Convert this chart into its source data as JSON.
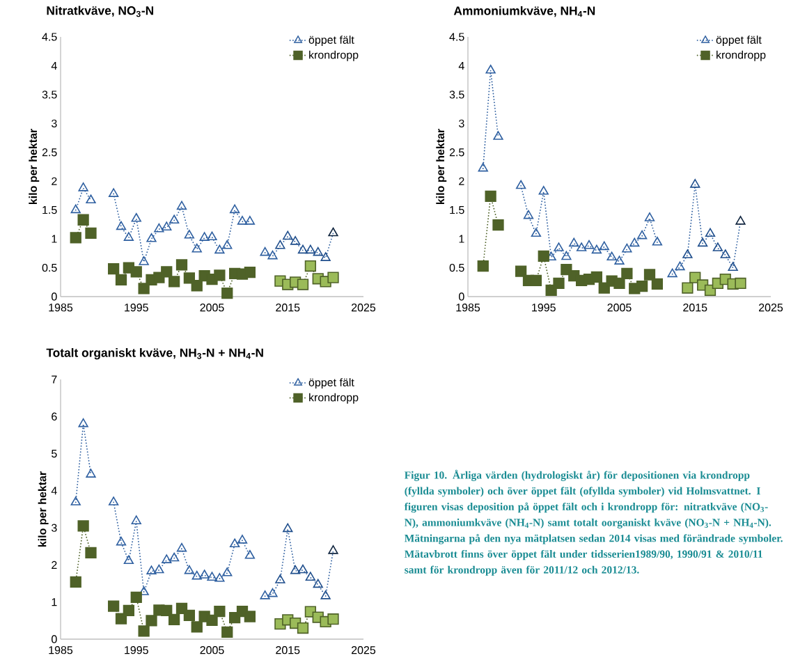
{
  "chart_data": [
    {
      "type": "line",
      "title": "Nitratkväve, NO$_{3}$-N",
      "ylabel": "kilo per hektar",
      "xlim": [
        1985,
        2025
      ],
      "xticks": [
        1985,
        1995,
        2005,
        2015,
        2025
      ],
      "ylim": [
        0,
        4.5
      ],
      "yticks": [
        0,
        0.5,
        1,
        1.5,
        2,
        2.5,
        3,
        3.5,
        4,
        4.5
      ],
      "legend": "top right",
      "x": [
        1987,
        1988,
        1989,
        1990,
        1991,
        1992,
        1993,
        1994,
        1995,
        1996,
        1997,
        1998,
        1999,
        2000,
        2001,
        2002,
        2003,
        2004,
        2005,
        2006,
        2007,
        2008,
        2009,
        2010,
        2011,
        2012,
        2013,
        2014,
        2015,
        2016,
        2017,
        2018,
        2019,
        2020,
        2021
      ],
      "series": [
        {
          "name": "öppet fält",
          "color": "#2e5fa0",
          "marker": "triangle",
          "line_style": "dotted",
          "values": [
            1.5,
            1.88,
            1.67,
            null,
            null,
            1.78,
            1.21,
            1.02,
            1.35,
            0.6,
            1.0,
            1.17,
            1.2,
            1.32,
            1.56,
            1.06,
            0.82,
            1.02,
            1.03,
            0.8,
            0.88,
            1.5,
            1.3,
            1.3,
            null,
            0.76,
            0.7,
            0.88,
            1.04,
            0.95,
            0.8,
            0.8,
            0.76,
            0.67,
            1.1
          ],
          "colors": [
            "#2e5fa0",
            "#2e5fa0",
            "#2e5fa0",
            null,
            null,
            "#2e5fa0",
            "#2e5fa0",
            "#2e5fa0",
            "#2e5fa0",
            "#2e5fa0",
            "#2e5fa0",
            "#2e5fa0",
            "#2e5fa0",
            "#2e5fa0",
            "#2e5fa0",
            "#2e5fa0",
            "#2e5fa0",
            "#2e5fa0",
            "#2e5fa0",
            "#2e5fa0",
            "#2e5fa0",
            "#2e5fa0",
            "#2e5fa0",
            "#2e5fa0",
            null,
            "#2e5fa0",
            "#2e5fa0",
            "#1f4e8c",
            "#1f4e8c",
            "#1f4e8c",
            "#1f4e8c",
            "#1f4e8c",
            "#1f4e8c",
            "#1f4e8c",
            "#10253f"
          ]
        },
        {
          "name": "krondropp",
          "color": "#4f6228",
          "marker": "square",
          "line_style": "dotted",
          "values": [
            1.02,
            1.33,
            1.1,
            null,
            null,
            0.48,
            0.29,
            0.5,
            0.43,
            0.14,
            0.29,
            0.33,
            0.43,
            0.26,
            0.55,
            0.32,
            0.19,
            0.36,
            0.3,
            0.37,
            0.06,
            0.4,
            0.39,
            0.42,
            null,
            null,
            null,
            0.27,
            0.21,
            0.25,
            0.21,
            0.53,
            0.31,
            0.26,
            0.33
          ],
          "colors": [
            "#4f6228",
            "#4f6228",
            "#4f6228",
            null,
            null,
            "#4f6228",
            "#4f6228",
            "#4f6228",
            "#4f6228",
            "#4f6228",
            "#4f6228",
            "#4f6228",
            "#4f6228",
            "#4f6228",
            "#4f6228",
            "#4f6228",
            "#4f6228",
            "#4f6228",
            "#4f6228",
            "#4f6228",
            "#4f6228",
            "#4f6228",
            "#4f6228",
            "#4f6228",
            null,
            null,
            null,
            "#9bbb59",
            "#9bbb59",
            "#9bbb59",
            "#9bbb59",
            "#9bbb59",
            "#9bbb59",
            "#9bbb59",
            "#9bbb59"
          ]
        }
      ]
    },
    {
      "type": "line",
      "title": "Ammoniumkväve, NH$_{4}$-N",
      "ylabel": "kilo per hektar",
      "xlim": [
        1985,
        2025
      ],
      "xticks": [
        1985,
        1995,
        2005,
        2015,
        2025
      ],
      "ylim": [
        0,
        4.5
      ],
      "yticks": [
        0,
        0.5,
        1,
        1.5,
        2,
        2.5,
        3,
        3.5,
        4,
        4.5
      ],
      "legend": "top right",
      "x": [
        1987,
        1988,
        1989,
        1990,
        1991,
        1992,
        1993,
        1994,
        1995,
        1996,
        1997,
        1998,
        1999,
        2000,
        2001,
        2002,
        2003,
        2004,
        2005,
        2006,
        2007,
        2008,
        2009,
        2010,
        2011,
        2012,
        2013,
        2014,
        2015,
        2016,
        2017,
        2018,
        2019,
        2020,
        2021
      ],
      "series": [
        {
          "name": "öppet fält",
          "color": "#2e5fa0",
          "marker": "triangle",
          "line_style": "dotted",
          "values": [
            2.22,
            3.92,
            2.77,
            null,
            null,
            1.92,
            1.4,
            1.09,
            1.82,
            0.68,
            0.84,
            0.69,
            0.92,
            0.84,
            0.88,
            0.8,
            0.86,
            0.68,
            0.61,
            0.82,
            0.92,
            1.05,
            1.36,
            0.94,
            null,
            0.39,
            0.51,
            0.72,
            1.94,
            0.92,
            1.09,
            0.84,
            0.72,
            0.5,
            1.3
          ],
          "colors": [
            "#2e5fa0",
            "#2e5fa0",
            "#2e5fa0",
            null,
            null,
            "#2e5fa0",
            "#2e5fa0",
            "#2e5fa0",
            "#2e5fa0",
            "#2e5fa0",
            "#2e5fa0",
            "#2e5fa0",
            "#2e5fa0",
            "#2e5fa0",
            "#2e5fa0",
            "#2e5fa0",
            "#2e5fa0",
            "#2e5fa0",
            "#2e5fa0",
            "#2e5fa0",
            "#2e5fa0",
            "#2e5fa0",
            "#2e5fa0",
            "#2e5fa0",
            null,
            "#2e5fa0",
            "#2e5fa0",
            "#1f4e8c",
            "#1f4e8c",
            "#1f4e8c",
            "#1f4e8c",
            "#1f4e8c",
            "#1f4e8c",
            "#1f4e8c",
            "#10253f"
          ]
        },
        {
          "name": "krondropp",
          "color": "#4f6228",
          "marker": "square",
          "line_style": "dotted",
          "values": [
            0.53,
            1.74,
            1.24,
            null,
            null,
            0.44,
            0.28,
            0.28,
            0.7,
            0.11,
            0.23,
            0.47,
            0.36,
            0.28,
            0.3,
            0.34,
            0.15,
            0.27,
            0.23,
            0.4,
            0.14,
            0.18,
            0.38,
            0.22,
            null,
            null,
            null,
            0.15,
            0.33,
            0.2,
            0.11,
            0.23,
            0.3,
            0.22,
            0.23
          ],
          "colors": [
            "#4f6228",
            "#4f6228",
            "#4f6228",
            null,
            null,
            "#4f6228",
            "#4f6228",
            "#4f6228",
            "#4f6228",
            "#4f6228",
            "#4f6228",
            "#4f6228",
            "#4f6228",
            "#4f6228",
            "#4f6228",
            "#4f6228",
            "#4f6228",
            "#4f6228",
            "#4f6228",
            "#4f6228",
            "#4f6228",
            "#4f6228",
            "#4f6228",
            "#4f6228",
            null,
            null,
            null,
            "#9bbb59",
            "#9bbb59",
            "#9bbb59",
            "#9bbb59",
            "#9bbb59",
            "#9bbb59",
            "#9bbb59",
            "#9bbb59"
          ]
        }
      ]
    },
    {
      "type": "line",
      "title": "Totalt organiskt kväve, NH$_{3}$-N + NH$_{4}$-N",
      "ylabel": "kilo per hektar",
      "xlim": [
        1985,
        2025
      ],
      "xticks": [
        1985,
        1995,
        2005,
        2015,
        2025
      ],
      "ylim": [
        0,
        7
      ],
      "yticks": [
        0,
        1,
        2,
        3,
        4,
        5,
        6,
        7
      ],
      "legend": "top right",
      "annotations": [
        "Figur 10. Årliga värden (hydrologiskt år) för depositionen via krondropp (fyllda symboler) och över öppet fält (ofyllda symboler) vid Holmsvattnet. I figuren visas deposition på öppet fält och i krondropp för: nitratkväve (NO$_{3}$-N), ammoniumkväve (NH$_{4}$-N) samt totalt oorganiskt kväve (NO$_{3}$-N + NH$_{4}$-N). Mätningarna på den nya mätplatsen sedan 2014 visas med förändrade symboler. Mätavbrott finns över öppet fält under tidsserien1989/90, 1990/91 & 2010/11 samt för krondropp även för 2011/12 och 2012/13."
      ],
      "x": [
        1987,
        1988,
        1989,
        1990,
        1991,
        1992,
        1993,
        1994,
        1995,
        1996,
        1997,
        1998,
        1999,
        2000,
        2001,
        2002,
        2003,
        2004,
        2005,
        2006,
        2007,
        2008,
        2009,
        2010,
        2011,
        2012,
        2013,
        2014,
        2015,
        2016,
        2017,
        2018,
        2019,
        2020,
        2021
      ],
      "series": [
        {
          "name": "öppet fält",
          "color": "#2e5fa0",
          "marker": "triangle",
          "line_style": "dotted",
          "values": [
            3.69,
            5.8,
            4.44,
            null,
            null,
            3.69,
            2.61,
            2.11,
            3.18,
            1.27,
            1.83,
            1.86,
            2.13,
            2.18,
            2.44,
            1.84,
            1.69,
            1.72,
            1.66,
            1.63,
            1.78,
            2.56,
            2.66,
            2.25,
            null,
            1.16,
            1.22,
            1.59,
            2.97,
            1.84,
            1.86,
            1.66,
            1.47,
            1.16,
            2.38
          ],
          "colors": [
            "#2e5fa0",
            "#2e5fa0",
            "#2e5fa0",
            null,
            null,
            "#2e5fa0",
            "#2e5fa0",
            "#2e5fa0",
            "#2e5fa0",
            "#2e5fa0",
            "#2e5fa0",
            "#2e5fa0",
            "#2e5fa0",
            "#2e5fa0",
            "#2e5fa0",
            "#2e5fa0",
            "#2e5fa0",
            "#2e5fa0",
            "#2e5fa0",
            "#2e5fa0",
            "#2e5fa0",
            "#2e5fa0",
            "#2e5fa0",
            "#2e5fa0",
            null,
            "#2e5fa0",
            "#2e5fa0",
            "#1f4e8c",
            "#1f4e8c",
            "#1f4e8c",
            "#1f4e8c",
            "#1f4e8c",
            "#1f4e8c",
            "#1f4e8c",
            "#10253f"
          ]
        },
        {
          "name": "krondropp",
          "color": "#4f6228",
          "marker": "square",
          "line_style": "dotted",
          "values": [
            1.54,
            3.05,
            2.33,
            null,
            null,
            0.89,
            0.55,
            0.77,
            1.13,
            0.22,
            0.5,
            0.78,
            0.77,
            0.53,
            0.83,
            0.64,
            0.33,
            0.61,
            0.51,
            0.75,
            0.19,
            0.58,
            0.75,
            0.61,
            null,
            null,
            null,
            0.41,
            0.52,
            0.43,
            0.3,
            0.74,
            0.59,
            0.47,
            0.54
          ],
          "colors": [
            "#4f6228",
            "#4f6228",
            "#4f6228",
            null,
            null,
            "#4f6228",
            "#4f6228",
            "#4f6228",
            "#4f6228",
            "#4f6228",
            "#4f6228",
            "#4f6228",
            "#4f6228",
            "#4f6228",
            "#4f6228",
            "#4f6228",
            "#4f6228",
            "#4f6228",
            "#4f6228",
            "#4f6228",
            "#4f6228",
            "#4f6228",
            "#4f6228",
            "#4f6228",
            null,
            null,
            null,
            "#9bbb59",
            "#9bbb59",
            "#9bbb59",
            "#9bbb59",
            "#9bbb59",
            "#9bbb59",
            "#9bbb59",
            "#9bbb59"
          ]
        }
      ]
    }
  ]
}
